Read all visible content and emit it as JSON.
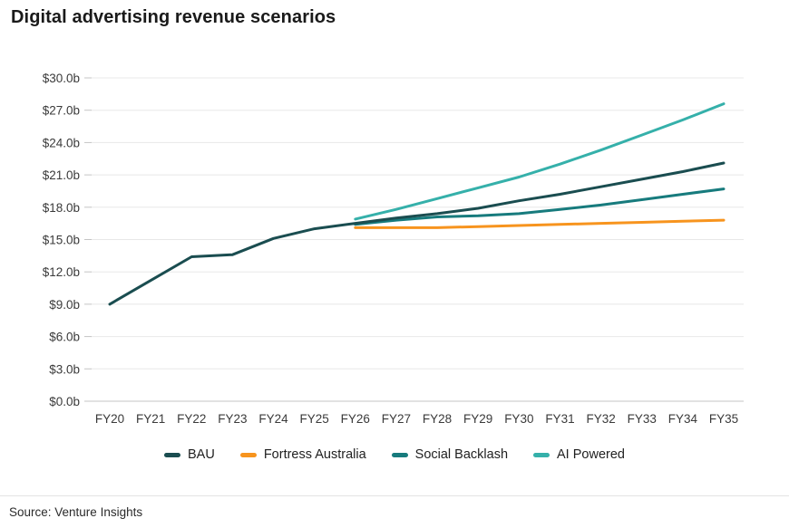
{
  "page": {
    "title": "Digital advertising revenue scenarios",
    "source": "Source: Venture Insights"
  },
  "colors": {
    "bau": "#1a4d50",
    "fortress_australia": "#f7941e",
    "social_backlash": "#177b7d",
    "ai_powered": "#35b0aa",
    "gridline": "#e8e8e8",
    "axis_line": "#c4c4c4",
    "title_text": "#1a1a1a",
    "axis_text": "#3a3a3a"
  },
  "chart_data": {
    "type": "line",
    "title": "Digital advertising revenue scenarios",
    "xlabel": "",
    "ylabel": "",
    "x_categories": [
      "FY20",
      "FY21",
      "FY22",
      "FY23",
      "FY24",
      "FY25",
      "FY26",
      "FY27",
      "FY28",
      "FY29",
      "FY30",
      "FY31",
      "FY32",
      "FY33",
      "FY34",
      "FY35"
    ],
    "ylim": [
      0,
      30
    ],
    "y_step": 3,
    "y_tick_labels": [
      "$0.0b",
      "$3.0b",
      "$6.0b",
      "$9.0b",
      "$12.0b",
      "$15.0b",
      "$18.0b",
      "$21.0b",
      "$24.0b",
      "$27.0b",
      "$30.0b"
    ],
    "grid": true,
    "legend_position": "bottom",
    "units": "billions AUD",
    "series": [
      {
        "name": "BAU",
        "color": "#1a4d50",
        "start_index": 0,
        "values": [
          9.0,
          11.2,
          13.4,
          13.6,
          15.1,
          16.0,
          16.5,
          17.0,
          17.4,
          17.9,
          18.6,
          19.2,
          19.9,
          20.6,
          21.3,
          22.1
        ]
      },
      {
        "name": "Fortress Australia",
        "color": "#f7941e",
        "start_index": 6,
        "values": [
          16.1,
          16.1,
          16.1,
          16.2,
          16.3,
          16.4,
          16.5,
          16.6,
          16.7,
          16.8
        ]
      },
      {
        "name": "Social Backlash",
        "color": "#177b7d",
        "start_index": 6,
        "values": [
          16.4,
          16.8,
          17.1,
          17.2,
          17.4,
          17.8,
          18.2,
          18.7,
          19.2,
          19.7
        ]
      },
      {
        "name": "AI Powered",
        "color": "#35b0aa",
        "start_index": 6,
        "values": [
          16.9,
          17.8,
          18.8,
          19.8,
          20.8,
          22.0,
          23.3,
          24.7,
          26.1,
          27.6
        ]
      }
    ]
  }
}
